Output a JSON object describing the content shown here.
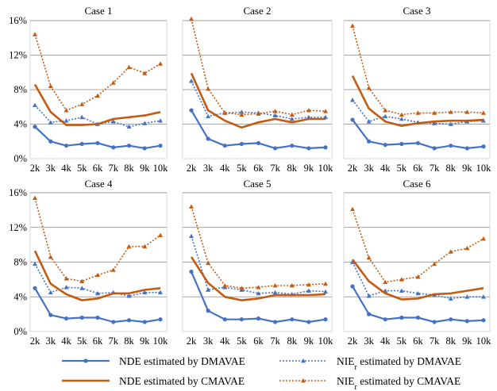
{
  "chart_data": {
    "type": "line",
    "panels": [
      {
        "title": "Case 1",
        "categories": [
          "2k",
          "3k",
          "4k",
          "5k",
          "6k",
          "7k",
          "8k",
          "9k",
          "10k"
        ],
        "series": [
          {
            "name": "NDE estimated by DMAVAE",
            "values": [
              3.7,
              2.0,
              1.5,
              1.7,
              1.8,
              1.3,
              1.5,
              1.2,
              1.5
            ]
          },
          {
            "name": "NIEr estimated by DMAVAE",
            "values": [
              6.2,
              4.2,
              4.4,
              4.8,
              4.0,
              4.3,
              3.7,
              4.1,
              4.4
            ]
          },
          {
            "name": "NDE estimated by CMAVAE",
            "values": [
              8.6,
              5.4,
              3.9,
              3.9,
              4.0,
              4.6,
              4.8,
              5.0,
              5.4
            ]
          },
          {
            "name": "NIEr estimated by CMAVAE",
            "values": [
              14.4,
              8.4,
              5.6,
              6.3,
              7.3,
              8.8,
              10.6,
              9.9,
              11.0
            ]
          }
        ]
      },
      {
        "title": "Case 2",
        "categories": [
          "2k",
          "3k",
          "4k",
          "5k",
          "6k",
          "7k",
          "8k",
          "9k",
          "10k"
        ],
        "series": [
          {
            "name": "NDE estimated by DMAVAE",
            "values": [
              5.6,
              2.3,
              1.5,
              1.7,
              1.8,
              1.2,
              1.5,
              1.2,
              1.3
            ]
          },
          {
            "name": "NIEr estimated by DMAVAE",
            "values": [
              9.0,
              4.9,
              5.3,
              5.4,
              5.3,
              5.0,
              4.6,
              4.8,
              4.8
            ]
          },
          {
            "name": "NDE estimated by CMAVAE",
            "values": [
              9.9,
              5.6,
              4.4,
              3.6,
              4.2,
              4.6,
              4.2,
              4.6,
              4.6
            ]
          },
          {
            "name": "NIEr estimated by CMAVAE",
            "values": [
              16.2,
              8.1,
              5.3,
              5.1,
              5.2,
              5.5,
              5.1,
              5.6,
              5.5
            ]
          }
        ]
      },
      {
        "title": "Case 3",
        "categories": [
          "2k",
          "3k",
          "4k",
          "5k",
          "6k",
          "7k",
          "8k",
          "9k",
          "10k"
        ],
        "series": [
          {
            "name": "NDE estimated by DMAVAE",
            "values": [
              4.5,
              2.0,
              1.6,
              1.7,
              1.8,
              1.2,
              1.5,
              1.2,
              1.4
            ]
          },
          {
            "name": "NIEr estimated by DMAVAE",
            "values": [
              6.8,
              4.3,
              4.9,
              4.6,
              4.2,
              4.1,
              4.0,
              4.3,
              4.4
            ]
          },
          {
            "name": "NDE estimated by CMAVAE",
            "values": [
              9.6,
              5.8,
              4.3,
              3.8,
              4.1,
              4.3,
              4.4,
              4.4,
              4.5
            ]
          },
          {
            "name": "NIEr estimated by CMAVAE",
            "values": [
              15.4,
              8.2,
              5.6,
              5.1,
              5.3,
              5.3,
              5.4,
              5.4,
              5.3
            ]
          }
        ]
      },
      {
        "title": "Case 4",
        "categories": [
          "2k",
          "3k",
          "4k",
          "5k",
          "6k",
          "7k",
          "8k",
          "9k",
          "10k"
        ],
        "series": [
          {
            "name": "NDE estimated by DMAVAE",
            "values": [
              5.0,
              1.9,
              1.5,
              1.6,
              1.6,
              1.1,
              1.3,
              1.1,
              1.4
            ]
          },
          {
            "name": "NIEr estimated by DMAVAE",
            "values": [
              7.8,
              4.5,
              5.1,
              5.0,
              4.4,
              4.5,
              4.1,
              4.5,
              4.5
            ]
          },
          {
            "name": "NDE estimated by CMAVAE",
            "values": [
              9.3,
              5.5,
              4.3,
              3.6,
              3.8,
              4.4,
              4.4,
              4.8,
              5.0
            ]
          },
          {
            "name": "NIEr estimated by CMAVAE",
            "values": [
              15.4,
              8.6,
              6.1,
              5.8,
              6.5,
              7.1,
              9.8,
              9.8,
              11.1
            ]
          }
        ]
      },
      {
        "title": "Case 5",
        "categories": [
          "2k",
          "3k",
          "4k",
          "5k",
          "6k",
          "7k",
          "8k",
          "9k",
          "10k"
        ],
        "series": [
          {
            "name": "NDE estimated by DMAVAE",
            "values": [
              6.9,
              2.4,
              1.4,
              1.4,
              1.5,
              1.1,
              1.4,
              1.1,
              1.4
            ]
          },
          {
            "name": "NIEr estimated by DMAVAE",
            "values": [
              11.0,
              4.8,
              5.1,
              4.8,
              4.4,
              4.5,
              4.3,
              4.7,
              4.6
            ]
          },
          {
            "name": "NDE estimated by CMAVAE",
            "values": [
              8.6,
              5.6,
              4.0,
              3.6,
              3.8,
              4.2,
              4.2,
              4.2,
              4.3
            ]
          },
          {
            "name": "NIEr estimated by CMAVAE",
            "values": [
              14.4,
              7.9,
              5.3,
              5.0,
              5.1,
              5.3,
              5.3,
              5.4,
              5.5
            ]
          }
        ]
      },
      {
        "title": "Case 6",
        "categories": [
          "2k",
          "3k",
          "4k",
          "5k",
          "6k",
          "7k",
          "8k",
          "9k",
          "10k"
        ],
        "series": [
          {
            "name": "NDE estimated by DMAVAE",
            "values": [
              5.2,
              2.0,
              1.4,
              1.6,
              1.6,
              1.1,
              1.4,
              1.2,
              1.3
            ]
          },
          {
            "name": "NIEr estimated by DMAVAE",
            "values": [
              8.0,
              4.1,
              4.7,
              4.7,
              4.4,
              4.2,
              3.8,
              4.0,
              4.0
            ]
          },
          {
            "name": "NDE estimated by CMAVAE",
            "values": [
              8.3,
              5.8,
              4.4,
              3.7,
              3.8,
              4.3,
              4.4,
              4.7,
              5.0
            ]
          },
          {
            "name": "NIEr estimated by CMAVAE",
            "values": [
              14.1,
              8.5,
              5.7,
              6.0,
              6.3,
              7.8,
              9.2,
              9.6,
              10.7
            ]
          }
        ]
      }
    ],
    "y_ticks": [
      "0%",
      "4%",
      "8%",
      "12%",
      "16%"
    ],
    "ylim": [
      0,
      16
    ],
    "grid": true,
    "legend": {
      "position": "bottom",
      "items": [
        {
          "pre": "NDE estimated by DMAVAE",
          "sub": "",
          "post": ""
        },
        {
          "pre": "NIE",
          "sub": "r",
          "post": " estimated by DMAVAE"
        },
        {
          "pre": "NDE estimated by CMAVAE",
          "sub": "",
          "post": ""
        },
        {
          "pre": "NIE",
          "sub": "r",
          "post": " estimated by CMAVAE"
        }
      ]
    },
    "colors": {
      "dmavae": "#4472c4",
      "cmavae": "#c55a11",
      "grid": "#888888",
      "axis": "#d9d9d9"
    },
    "series_styles": [
      {
        "color_key": "dmavae",
        "dashed": false,
        "marker": "circle"
      },
      {
        "color_key": "dmavae",
        "dashed": true,
        "marker": "triangle"
      },
      {
        "color_key": "cmavae",
        "dashed": false,
        "marker": "none"
      },
      {
        "color_key": "cmavae",
        "dashed": true,
        "marker": "triangle"
      }
    ]
  }
}
